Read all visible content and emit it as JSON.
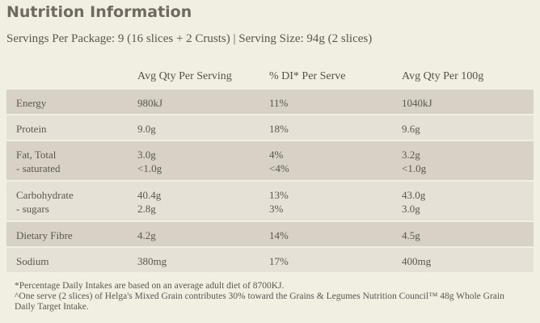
{
  "title": "Nutrition Information",
  "servings": "Servings Per Package: 9 (16 slices + 2 Crusts) | Serving Size: 94g (2 slices)",
  "headers": [
    "Avg Qty Per Serving",
    "% DI* Per Serve",
    "Avg Qty Per 100g"
  ],
  "rows": [
    {
      "label": "Energy",
      "serving": "980kJ",
      "di": "11%",
      "per100": "1040kJ"
    },
    {
      "label": "Protein",
      "serving": "9.0g",
      "di": "18%",
      "per100": "9.6g"
    },
    {
      "label": "Fat, Total",
      "serving": "3.0g",
      "di": "4%",
      "per100": "3.2g",
      "sub": {
        "label": "- saturated",
        "serving": "<1.0g",
        "di": "<4%",
        "per100": "<1.0g"
      }
    },
    {
      "label": "Carbohydrate",
      "serving": "40.4g",
      "di": "13%",
      "per100": "43.0g",
      "sub": {
        "label": "- sugars",
        "serving": "2.8g",
        "di": "3%",
        "per100": "3.0g"
      }
    },
    {
      "label": "Dietary Fibre",
      "serving": "4.2g",
      "di": "14%",
      "per100": "4.5g"
    },
    {
      "label": "Sodium",
      "serving": "380mg",
      "di": "17%",
      "per100": "400mg"
    }
  ],
  "footnotes": [
    "*Percentage Daily Intakes are based on an average adult diet of 8700KJ.",
    "^One serve (2 slices) of Helga's Mixed Grain contributes 30% toward the Grains & Legumes Nutrition Council™ 48g Whole Grain",
    "Daily Target Intake."
  ]
}
